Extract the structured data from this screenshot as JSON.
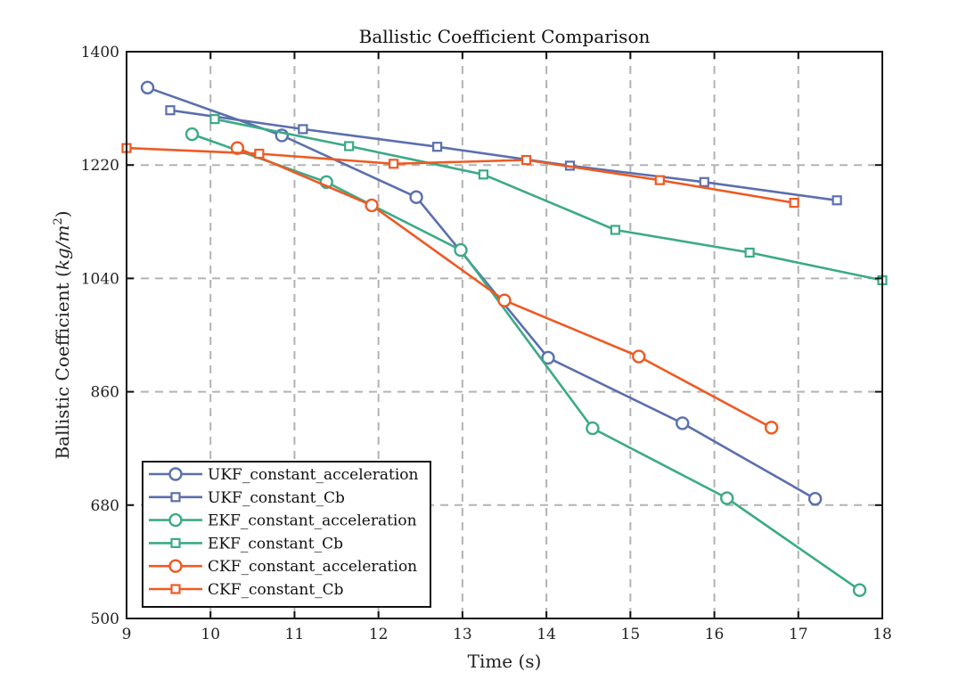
{
  "chart_data": {
    "type": "line",
    "title": "Ballistic Coefficient Comparison",
    "xlabel": "Time (s)",
    "ylabel_main": "Ballistic Coefficient (",
    "ylabel_unit": "kg/m",
    "ylabel_sup": "2",
    "ylabel_close": ")",
    "xlim": [
      9,
      18
    ],
    "ylim": [
      500,
      1400
    ],
    "xticks": [
      9,
      10,
      11,
      12,
      13,
      14,
      15,
      16,
      17,
      18
    ],
    "yticks": [
      500,
      680,
      860,
      1040,
      1220,
      1400
    ],
    "grid": true,
    "grid_style": "dashed",
    "legend_position": "bottom-left",
    "colors": {
      "blue": "#5b6fad",
      "green": "#3caa87",
      "orange": "#ee5a24"
    },
    "series": [
      {
        "name": "UKF_constant_acceleration",
        "color": "#5b6fad",
        "marker": "circle",
        "x": [
          9.25,
          10.85,
          12.45,
          14.02,
          15.62,
          17.2
        ],
        "y": [
          1343,
          1267,
          1169,
          914,
          810,
          690
        ]
      },
      {
        "name": "UKF_constant_Cb",
        "color": "#5b6fad",
        "marker": "square",
        "x": [
          9.52,
          11.1,
          12.7,
          14.28,
          15.88,
          17.46
        ],
        "y": [
          1307,
          1277,
          1249,
          1219,
          1193,
          1164
        ]
      },
      {
        "name": "EKF_constant_acceleration",
        "color": "#3caa87",
        "marker": "circle",
        "x": [
          9.78,
          11.38,
          12.98,
          14.55,
          16.15,
          17.73
        ],
        "y": [
          1269,
          1193,
          1085,
          802,
          691,
          545
        ]
      },
      {
        "name": "EKF_constant_Cb",
        "color": "#3caa87",
        "marker": "square",
        "x": [
          10.05,
          11.65,
          13.25,
          14.82,
          16.42,
          18.0
        ],
        "y": [
          1293,
          1250,
          1205,
          1117,
          1081,
          1037
        ]
      },
      {
        "name": "CKF_constant_acceleration",
        "color": "#ee5a24",
        "marker": "circle",
        "x": [
          10.32,
          11.92,
          13.5,
          15.1,
          16.68
        ],
        "y": [
          1247,
          1156,
          1005,
          916,
          803
        ]
      },
      {
        "name": "CKF_constant_Cb",
        "color": "#ee5a24",
        "marker": "square",
        "x": [
          9.0,
          10.58,
          12.18,
          13.76,
          15.35,
          16.95
        ],
        "y": [
          1247,
          1238,
          1222,
          1228,
          1196,
          1160
        ]
      }
    ]
  }
}
